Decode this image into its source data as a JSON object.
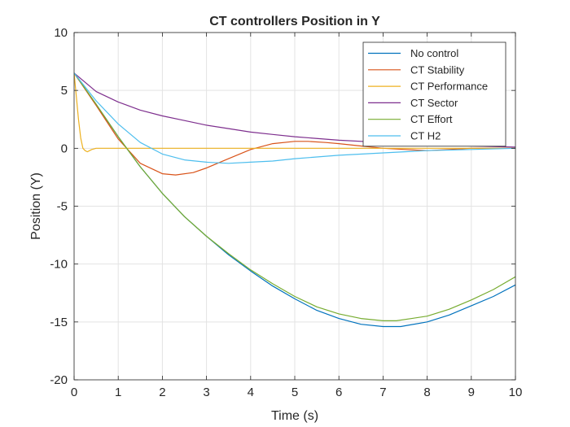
{
  "chart_data": {
    "type": "line",
    "title": "CT controllers Position in Y",
    "xlabel": "Time (s)",
    "ylabel": "Position (Y)",
    "xlim": [
      0,
      10
    ],
    "ylim": [
      -20,
      10
    ],
    "xticks": [
      0,
      1,
      2,
      3,
      4,
      5,
      6,
      7,
      8,
      9,
      10
    ],
    "yticks": [
      -20,
      -15,
      -10,
      -5,
      0,
      5,
      10
    ],
    "xtick_labels": [
      "0",
      "1",
      "2",
      "3",
      "4",
      "5",
      "6",
      "7",
      "8",
      "9",
      "10"
    ],
    "ytick_labels": [
      "-20",
      "-15",
      "-10",
      "-5",
      "0",
      "5",
      "10"
    ],
    "grid": true,
    "legend_position": "top-right",
    "series": [
      {
        "name": "No control",
        "color": "#0072BD",
        "x": [
          0,
          0.5,
          1,
          1.5,
          2,
          2.5,
          3,
          3.5,
          4,
          4.5,
          5,
          5.5,
          6,
          6.5,
          7,
          7.4,
          8,
          8.5,
          9,
          9.5,
          10
        ],
        "y": [
          6.5,
          3.8,
          1.0,
          -1.6,
          -3.9,
          -5.9,
          -7.6,
          -9.2,
          -10.6,
          -11.9,
          -13.0,
          -14.0,
          -14.7,
          -15.2,
          -15.4,
          -15.4,
          -15.0,
          -14.4,
          -13.6,
          -12.8,
          -11.8
        ]
      },
      {
        "name": "CT Stability",
        "color": "#D95319",
        "x": [
          0,
          0.5,
          1,
          1.5,
          2,
          2.3,
          2.7,
          3,
          3.5,
          4,
          4.5,
          5,
          5.3,
          5.7,
          6,
          6.5,
          7,
          7.5,
          8,
          8.5,
          9,
          9.5,
          10
        ],
        "y": [
          6.5,
          3.7,
          0.8,
          -1.3,
          -2.2,
          -2.3,
          -2.1,
          -1.7,
          -0.9,
          -0.1,
          0.4,
          0.6,
          0.6,
          0.5,
          0.4,
          0.2,
          0.0,
          -0.1,
          -0.2,
          -0.1,
          0.0,
          0.0,
          0.0
        ]
      },
      {
        "name": "CT Performance",
        "color": "#EDB120",
        "x": [
          0,
          0.05,
          0.1,
          0.15,
          0.2,
          0.25,
          0.3,
          0.35,
          0.4,
          0.5,
          0.7,
          1,
          2,
          4,
          6,
          8,
          10
        ],
        "y": [
          6.5,
          4.5,
          2.5,
          0.9,
          0.0,
          -0.2,
          -0.3,
          -0.2,
          -0.1,
          0.0,
          0.0,
          0.0,
          0.0,
          0.0,
          0.0,
          0.0,
          0.0
        ]
      },
      {
        "name": "CT Sector",
        "color": "#7E2F8E",
        "x": [
          0,
          0.5,
          1,
          1.5,
          2,
          2.5,
          3,
          3.5,
          4,
          4.5,
          5,
          6,
          7,
          8,
          9,
          10
        ],
        "y": [
          6.5,
          4.9,
          4.0,
          3.3,
          2.8,
          2.4,
          2.0,
          1.7,
          1.4,
          1.2,
          1.0,
          0.7,
          0.5,
          0.3,
          0.2,
          0.1
        ]
      },
      {
        "name": "CT Effort",
        "color": "#77AC30",
        "x": [
          0,
          0.5,
          1,
          1.5,
          2,
          2.5,
          3,
          3.5,
          4,
          4.5,
          5,
          5.5,
          6,
          6.5,
          7,
          7.3,
          8,
          8.5,
          9,
          9.5,
          10
        ],
        "y": [
          6.5,
          3.8,
          1.0,
          -1.6,
          -3.9,
          -5.9,
          -7.6,
          -9.1,
          -10.5,
          -11.7,
          -12.8,
          -13.7,
          -14.3,
          -14.7,
          -14.9,
          -14.9,
          -14.5,
          -13.9,
          -13.1,
          -12.2,
          -11.1
        ]
      },
      {
        "name": "CT H2",
        "color": "#4DBEEE",
        "x": [
          0,
          0.5,
          1,
          1.5,
          2,
          2.5,
          3,
          3.5,
          4,
          4.5,
          5,
          6,
          7,
          8,
          9,
          10
        ],
        "y": [
          6.5,
          4.1,
          2.1,
          0.5,
          -0.5,
          -1.0,
          -1.2,
          -1.3,
          -1.2,
          -1.1,
          -0.9,
          -0.6,
          -0.4,
          -0.2,
          -0.1,
          0.0
        ]
      }
    ]
  }
}
